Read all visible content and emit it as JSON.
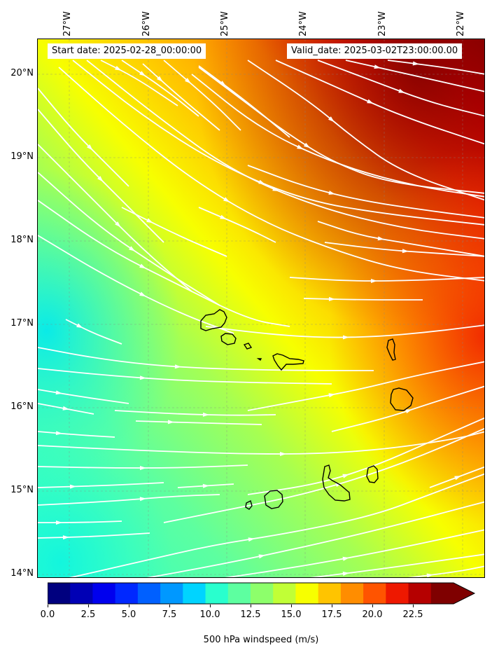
{
  "info": {
    "start_date": "Start date: 2025-02-28_00:00:00",
    "valid_date": "Valid_date: 2025-03-02T23:00:00.00"
  },
  "lat_labels": [
    "20°N",
    "19°N",
    "18°N",
    "17°N",
    "16°N",
    "15°N",
    "14°N"
  ],
  "lon_labels": [
    "27°W",
    "26°W",
    "25°W",
    "24°W",
    "23°W",
    "22°W"
  ],
  "colorbar": {
    "title": "500 hPa windspeed (m/s)",
    "ticks": [
      "0.0",
      "2.5",
      "5.0",
      "7.5",
      "10.0",
      "12.5",
      "15.0",
      "17.5",
      "20.0",
      "22.5"
    ],
    "colors": [
      "#00007f",
      "#0000b5",
      "#0000ee",
      "#0028ff",
      "#0060ff",
      "#0098ff",
      "#00d4ff",
      "#29ffce",
      "#5dffa0",
      "#8dff6b",
      "#c1ff36",
      "#f7ff00",
      "#ffc400",
      "#ff8d00",
      "#ff5400",
      "#ee1800",
      "#b50000",
      "#7f0000"
    ]
  },
  "map": {
    "region": "Cape Verde",
    "field": "500 hPa windspeed",
    "min_speed_ms": 11,
    "max_speed_ms": 24
  }
}
